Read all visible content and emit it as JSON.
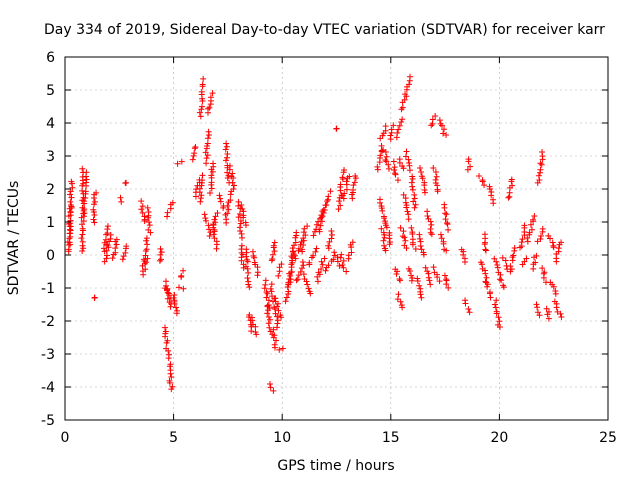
{
  "chart_data": {
    "type": "scatter",
    "title": "Day 334 of 2019, Sidereal Day-to-day VTEC variation (SDTVAR) for receiver karr",
    "xlabel": "GPS time / hours",
    "ylabel": "SDTVAR / TECUs",
    "xlim": [
      0,
      25
    ],
    "ylim": [
      -5,
      6
    ],
    "xticks": [
      0,
      5,
      10,
      15,
      20,
      25
    ],
    "yticks": [
      -5,
      -4,
      -3,
      -2,
      -1,
      0,
      1,
      2,
      3,
      4,
      5,
      6
    ],
    "xtick_labels": [
      "0",
      "5",
      "10",
      "15",
      "20",
      "25"
    ],
    "ytick_labels": [
      "-5",
      "-4",
      "-3",
      "-2",
      "-1",
      "0",
      "1",
      "2",
      "3",
      "4",
      "5",
      "6"
    ],
    "grid": true,
    "marker": "+",
    "marker_color": "#ff0000",
    "series": [
      {
        "name": "SDTVAR",
        "segments": [
          [
            0.15,
            0.1,
            0.3,
            2.25
          ],
          [
            0.2,
            0.3,
            0.3,
            1.5
          ],
          [
            0.8,
            0.1,
            0.85,
            2.6
          ],
          [
            0.85,
            1.2,
            1.0,
            2.5
          ],
          [
            1.4,
            -1.3,
            1.4,
            -1.3
          ],
          [
            1.3,
            1.0,
            1.4,
            1.9
          ],
          [
            1.8,
            0.1,
            2.0,
            0.9
          ],
          [
            1.85,
            -0.2,
            2.1,
            0.6
          ],
          [
            2.2,
            -0.1,
            2.4,
            0.5
          ],
          [
            2.5,
            1.7,
            2.6,
            1.6
          ],
          [
            2.7,
            -0.1,
            2.8,
            0.3
          ],
          [
            2.8,
            2.2,
            2.8,
            2.2
          ],
          [
            3.5,
            1.6,
            3.7,
            1.0
          ],
          [
            3.6,
            -0.3,
            3.8,
            0.5
          ],
          [
            3.6,
            -0.6,
            3.8,
            -0.1
          ],
          [
            3.8,
            1.4,
            3.9,
            0.7
          ],
          [
            4.4,
            -0.2,
            4.4,
            0.2
          ],
          [
            4.6,
            -2.2,
            4.7,
            -2.7
          ],
          [
            4.7,
            -2.8,
            4.75,
            -3.1
          ],
          [
            4.8,
            -3.3,
            4.9,
            -4.1
          ],
          [
            4.6,
            -0.8,
            4.9,
            -1.6
          ],
          [
            4.6,
            -1.0,
            5.0,
            -1.4
          ],
          [
            4.7,
            1.2,
            5.0,
            1.6
          ],
          [
            5.0,
            -1.2,
            5.2,
            -1.8
          ],
          [
            5.3,
            -0.7,
            5.4,
            -0.5
          ],
          [
            5.3,
            -1.0,
            5.4,
            -1.0
          ],
          [
            5.2,
            2.8,
            5.4,
            2.8
          ],
          [
            5.9,
            2.9,
            6.0,
            3.3
          ],
          [
            6.0,
            1.8,
            6.2,
            2.3
          ],
          [
            6.2,
            4.2,
            6.4,
            5.3
          ],
          [
            6.2,
            1.6,
            6.3,
            2.4
          ],
          [
            6.4,
            1.2,
            6.6,
            0.8
          ],
          [
            6.5,
            2.8,
            6.6,
            3.7
          ],
          [
            6.6,
            4.3,
            6.8,
            4.9
          ],
          [
            6.7,
            1.9,
            6.8,
            2.8
          ],
          [
            6.7,
            0.6,
            7.0,
            1.3
          ],
          [
            6.8,
            0.9,
            7.0,
            0.2
          ],
          [
            7.1,
            1.8,
            7.3,
            1.4
          ],
          [
            7.4,
            1.0,
            7.6,
            1.9
          ],
          [
            7.4,
            3.4,
            7.5,
            2.2
          ],
          [
            7.6,
            2.7,
            7.8,
            2.0
          ],
          [
            8.0,
            1.6,
            8.1,
            0.5
          ],
          [
            8.1,
            0.3,
            8.2,
            -0.4
          ],
          [
            8.1,
            1.5,
            8.3,
            0.9
          ],
          [
            8.3,
            0.2,
            8.5,
            -1.0
          ],
          [
            8.5,
            -1.8,
            8.6,
            -2.3
          ],
          [
            8.6,
            -1.9,
            8.8,
            -2.4
          ],
          [
            8.7,
            0.1,
            8.9,
            -0.6
          ],
          [
            9.2,
            -0.8,
            9.4,
            -1.6
          ],
          [
            9.3,
            -1.5,
            9.5,
            -2.4
          ],
          [
            9.5,
            -0.9,
            9.8,
            -2.2
          ],
          [
            9.6,
            -2.3,
            9.7,
            -2.8
          ],
          [
            9.7,
            -1.3,
            9.9,
            -1.9
          ],
          [
            9.9,
            -2.9,
            10.0,
            -2.8
          ],
          [
            9.4,
            -3.9,
            9.6,
            -4.1
          ],
          [
            9.5,
            -0.2,
            9.7,
            0.4
          ],
          [
            9.8,
            -0.6,
            10.0,
            -0.3
          ],
          [
            10.2,
            -1.4,
            10.4,
            -0.5
          ],
          [
            10.3,
            -0.9,
            10.5,
            0.1
          ],
          [
            10.4,
            0.0,
            10.7,
            0.7
          ],
          [
            10.5,
            -0.2,
            10.9,
            0.4
          ],
          [
            10.7,
            -0.8,
            11.0,
            -0.2
          ],
          [
            10.9,
            0.1,
            11.1,
            0.9
          ],
          [
            11.0,
            -0.6,
            11.3,
            -1.2
          ],
          [
            11.2,
            -0.3,
            11.6,
            0.2
          ],
          [
            11.4,
            0.6,
            11.7,
            1.0
          ],
          [
            11.6,
            -0.8,
            11.9,
            -0.1
          ],
          [
            11.7,
            0.7,
            12.0,
            1.5
          ],
          [
            11.8,
            1.1,
            12.2,
            1.9
          ],
          [
            12.0,
            -0.5,
            12.3,
            -0.1
          ],
          [
            12.1,
            0.2,
            12.3,
            0.7
          ],
          [
            12.4,
            0.1,
            12.6,
            -0.3
          ],
          [
            12.5,
            3.8,
            12.5,
            3.8
          ],
          [
            12.6,
            1.4,
            12.8,
            2.6
          ],
          [
            12.7,
            0.0,
            12.9,
            -0.5
          ],
          [
            12.8,
            1.7,
            13.1,
            2.4
          ],
          [
            13.1,
            -0.1,
            13.2,
            0.4
          ],
          [
            13.2,
            1.7,
            13.4,
            2.4
          ],
          [
            14.4,
            2.6,
            14.6,
            3.3
          ],
          [
            14.5,
            3.5,
            14.8,
            3.9
          ],
          [
            14.5,
            1.7,
            14.7,
            1.0
          ],
          [
            14.6,
            0.8,
            14.8,
            0.1
          ],
          [
            14.7,
            3.2,
            14.9,
            2.6
          ],
          [
            14.8,
            1.0,
            15.0,
            0.3
          ],
          [
            15.0,
            3.5,
            15.1,
            3.9
          ],
          [
            15.1,
            2.8,
            15.3,
            2.3
          ],
          [
            15.2,
            -0.4,
            15.4,
            -0.8
          ],
          [
            15.3,
            -1.2,
            15.5,
            -1.6
          ],
          [
            15.3,
            3.6,
            15.5,
            4.1
          ],
          [
            15.4,
            2.9,
            15.6,
            2.6
          ],
          [
            15.5,
            4.4,
            15.7,
            4.9
          ],
          [
            15.5,
            0.8,
            15.7,
            0.2
          ],
          [
            15.6,
            1.8,
            15.8,
            1.1
          ],
          [
            15.7,
            5.0,
            15.9,
            5.4
          ],
          [
            15.7,
            3.1,
            15.9,
            2.6
          ],
          [
            15.8,
            -0.4,
            16.0,
            -0.8
          ],
          [
            15.9,
            0.8,
            16.1,
            0.2
          ],
          [
            16.0,
            2.4,
            16.1,
            1.4
          ],
          [
            16.2,
            -0.7,
            16.4,
            -1.3
          ],
          [
            16.3,
            0.6,
            16.5,
            0.0
          ],
          [
            16.4,
            2.6,
            16.6,
            1.9
          ],
          [
            16.6,
            -0.4,
            16.8,
            -0.9
          ],
          [
            16.7,
            1.3,
            16.9,
            0.6
          ],
          [
            16.9,
            3.9,
            17.0,
            4.2
          ],
          [
            17.0,
            2.6,
            17.2,
            1.9
          ],
          [
            17.0,
            -0.4,
            17.2,
            -0.8
          ],
          [
            17.3,
            4.1,
            17.5,
            3.6
          ],
          [
            17.3,
            0.6,
            17.5,
            0.1
          ],
          [
            17.5,
            1.5,
            17.6,
            0.8
          ],
          [
            17.5,
            -0.6,
            17.6,
            -1.0
          ],
          [
            18.3,
            0.2,
            18.4,
            -0.2
          ],
          [
            18.4,
            -1.4,
            18.6,
            -1.7
          ],
          [
            18.6,
            2.9,
            18.6,
            2.6
          ],
          [
            19.1,
            2.4,
            19.3,
            2.1
          ],
          [
            19.2,
            -0.2,
            19.4,
            -0.8
          ],
          [
            19.3,
            0.6,
            19.4,
            0.1
          ],
          [
            19.4,
            -0.8,
            19.6,
            -1.3
          ],
          [
            19.6,
            2.1,
            19.7,
            1.6
          ],
          [
            19.8,
            -0.1,
            19.9,
            -0.5
          ],
          [
            19.8,
            -1.4,
            20.0,
            -2.2
          ],
          [
            20.0,
            -0.6,
            20.2,
            -1.0
          ],
          [
            20.2,
            -0.1,
            20.4,
            -0.4
          ],
          [
            20.4,
            1.7,
            20.6,
            2.3
          ],
          [
            20.5,
            -0.5,
            20.7,
            0.2
          ],
          [
            21.0,
            0.2,
            21.2,
            0.9
          ],
          [
            21.1,
            -0.3,
            21.3,
            -0.1
          ],
          [
            21.3,
            0.4,
            21.6,
            1.2
          ],
          [
            21.5,
            -0.4,
            21.7,
            0.0
          ],
          [
            21.7,
            -1.5,
            21.8,
            -1.8
          ],
          [
            21.8,
            2.2,
            22.0,
            3.1
          ],
          [
            21.8,
            0.4,
            22.0,
            0.8
          ],
          [
            22.0,
            -0.4,
            22.1,
            -0.8
          ],
          [
            22.2,
            -1.6,
            22.3,
            -1.9
          ],
          [
            22.3,
            0.6,
            22.5,
            0.2
          ],
          [
            22.4,
            -0.8,
            22.6,
            -1.2
          ],
          [
            22.6,
            -0.2,
            22.8,
            0.4
          ],
          [
            22.6,
            -1.4,
            22.8,
            -1.9
          ]
        ]
      }
    ]
  }
}
